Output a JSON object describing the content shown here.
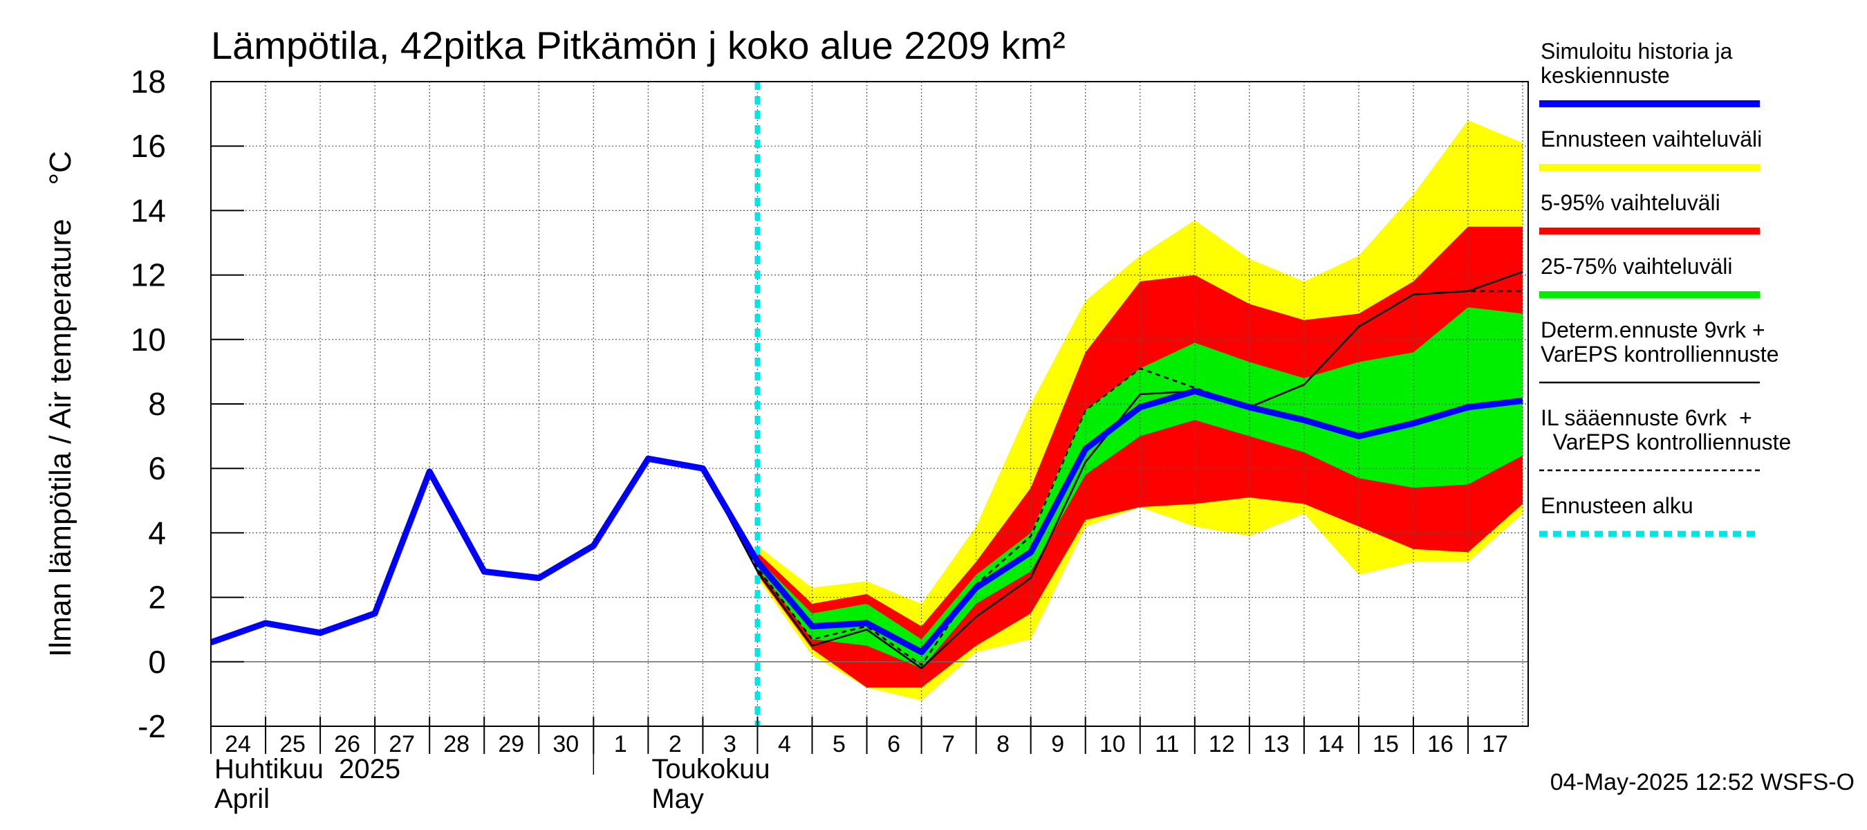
{
  "chart_data": {
    "type": "line",
    "title": "Lämpötila, 42pitka Pitkämön j koko alue 2209 km²",
    "ylabel": "Ilman lämpötila / Air temperature    °C",
    "ylim": [
      -2,
      18
    ],
    "yticks": [
      -2,
      0,
      2,
      4,
      6,
      8,
      10,
      12,
      14,
      16,
      18
    ],
    "x": [
      0,
      1,
      2,
      3,
      4,
      5,
      6,
      7,
      8,
      9,
      10,
      11,
      12,
      13,
      14,
      15,
      16,
      17,
      18,
      19,
      20,
      21,
      22,
      23,
      24
    ],
    "xlim": [
      0,
      24.1
    ],
    "day_labels": [
      "24",
      "25",
      "26",
      "27",
      "28",
      "29",
      "30",
      "1",
      "2",
      "3",
      "4",
      "5",
      "6",
      "7",
      "8",
      "9",
      "10",
      "11",
      "12",
      "13",
      "14",
      "15",
      "16",
      "17"
    ],
    "month_labels": [
      {
        "line1": "Huhtikuu  2025",
        "line2": "April",
        "start_day": 0
      },
      {
        "line1": "Toukokuu",
        "line2": "May",
        "start_day": 8
      }
    ],
    "month_separator_day": 7,
    "forecast_start_x": 10,
    "series": [
      {
        "name": "Ennusteen vaihteluväli",
        "kind": "band",
        "color": "#ffff00",
        "x": [
          10,
          11,
          12,
          13,
          14,
          15,
          16,
          17,
          18,
          19,
          20,
          21,
          22,
          23,
          24
        ],
        "upper": [
          3.6,
          2.3,
          2.5,
          1.8,
          4.2,
          8.0,
          11.2,
          12.6,
          13.7,
          12.5,
          11.8,
          12.6,
          14.5,
          16.8,
          16.1
        ],
        "lower": [
          2.6,
          0.2,
          -0.8,
          -1.2,
          0.3,
          0.7,
          4.2,
          4.8,
          4.2,
          3.9,
          4.6,
          2.7,
          3.1,
          3.1,
          4.6
        ]
      },
      {
        "name": "5-95% vaihteluväli",
        "kind": "band",
        "color": "#ff0000",
        "x": [
          10,
          11,
          12,
          13,
          14,
          15,
          16,
          17,
          18,
          19,
          20,
          21,
          22,
          23,
          24
        ],
        "upper": [
          3.4,
          1.8,
          2.1,
          1.1,
          3.1,
          5.4,
          9.6,
          11.8,
          12.0,
          11.1,
          10.6,
          10.8,
          11.8,
          13.5,
          13.5
        ],
        "lower": [
          2.7,
          0.4,
          -0.8,
          -0.8,
          0.5,
          1.5,
          4.4,
          4.8,
          4.9,
          5.1,
          4.9,
          4.2,
          3.5,
          3.4,
          4.9
        ]
      },
      {
        "name": "25-75% vaihteluväli",
        "kind": "band",
        "color": "#00ee00",
        "x": [
          10,
          11,
          12,
          13,
          14,
          15,
          16,
          17,
          18,
          19,
          20,
          21,
          22,
          23,
          24
        ],
        "upper": [
          3.2,
          1.5,
          1.8,
          0.7,
          2.7,
          4.0,
          7.8,
          9.1,
          9.9,
          9.3,
          8.8,
          9.3,
          9.6,
          11.0,
          10.8
        ],
        "lower": [
          2.9,
          0.7,
          0.5,
          -0.2,
          1.8,
          2.8,
          5.8,
          7.0,
          7.5,
          7.0,
          6.5,
          5.7,
          5.4,
          5.5,
          6.4
        ]
      },
      {
        "name": "Determ.ennuste 9vrk + VarEPS kontrolliennuste",
        "kind": "line",
        "color": "#000000",
        "dashed": false,
        "x": [
          9,
          10,
          11,
          12,
          13,
          14,
          15,
          16,
          17,
          18,
          19,
          20,
          21,
          22,
          23,
          24
        ],
        "y": [
          6.0,
          2.8,
          0.5,
          1.0,
          -0.2,
          1.4,
          2.6,
          6.2,
          8.3,
          8.4,
          7.9,
          8.6,
          10.4,
          11.4,
          11.5,
          12.1
        ]
      },
      {
        "name": "IL sääennuste 6vrk + VarEPS kontrolliennuste",
        "kind": "line",
        "color": "#000000",
        "dashed": true,
        "x": [
          9,
          10,
          11,
          12,
          13,
          14,
          15,
          16,
          17,
          18,
          19,
          20,
          21,
          22,
          23,
          24
        ],
        "y": [
          6.0,
          2.9,
          0.7,
          1.1,
          -0.1,
          2.4,
          3.9,
          7.8,
          9.1,
          8.5,
          7.9,
          8.6,
          10.4,
          11.4,
          11.5,
          11.5
        ]
      },
      {
        "name": "Simuloitu historia ja keskiennuste",
        "kind": "line",
        "color": "#0000ff",
        "dashed": false,
        "x": [
          0,
          1,
          2,
          3,
          4,
          5,
          6,
          7,
          8,
          9,
          10,
          11,
          12,
          13,
          14,
          15,
          16,
          17,
          18,
          19,
          20,
          21,
          22,
          23,
          24
        ],
        "y": [
          0.6,
          1.2,
          0.9,
          1.5,
          5.9,
          2.8,
          2.6,
          3.6,
          6.3,
          6.0,
          3.1,
          1.1,
          1.2,
          0.3,
          2.3,
          3.4,
          6.6,
          7.9,
          8.4,
          7.9,
          7.5,
          7.0,
          7.4,
          7.9,
          8.1
        ]
      }
    ],
    "legend": [
      {
        "label_lines": [
          "Simuloitu historia ja",
          "keskiennuste"
        ],
        "color": "#0000ff",
        "style": "thick"
      },
      {
        "label_lines": [
          "Ennusteen vaihteluväli"
        ],
        "color": "#ffff00",
        "style": "thick"
      },
      {
        "label_lines": [
          "5-95% vaihteluväli"
        ],
        "color": "#ff0000",
        "style": "thick"
      },
      {
        "label_lines": [
          "25-75% vaihteluväli"
        ],
        "color": "#00ee00",
        "style": "thick"
      },
      {
        "label_lines": [
          "Determ.ennuste 9vrk +",
          "VarEPS kontrolliennuste"
        ],
        "color": "#000000",
        "style": "thin"
      },
      {
        "label_lines": [
          "IL sääennuste 6vrk  +",
          "  VarEPS kontrolliennuste"
        ],
        "color": "#000000",
        "style": "dashed"
      },
      {
        "label_lines": [
          "Ennusteen alku"
        ],
        "color": "#00e5e5",
        "style": "cyan-dashed"
      }
    ],
    "legend_position": "right",
    "grid": true,
    "footer": "04-May-2025 12:52 WSFS-O"
  }
}
